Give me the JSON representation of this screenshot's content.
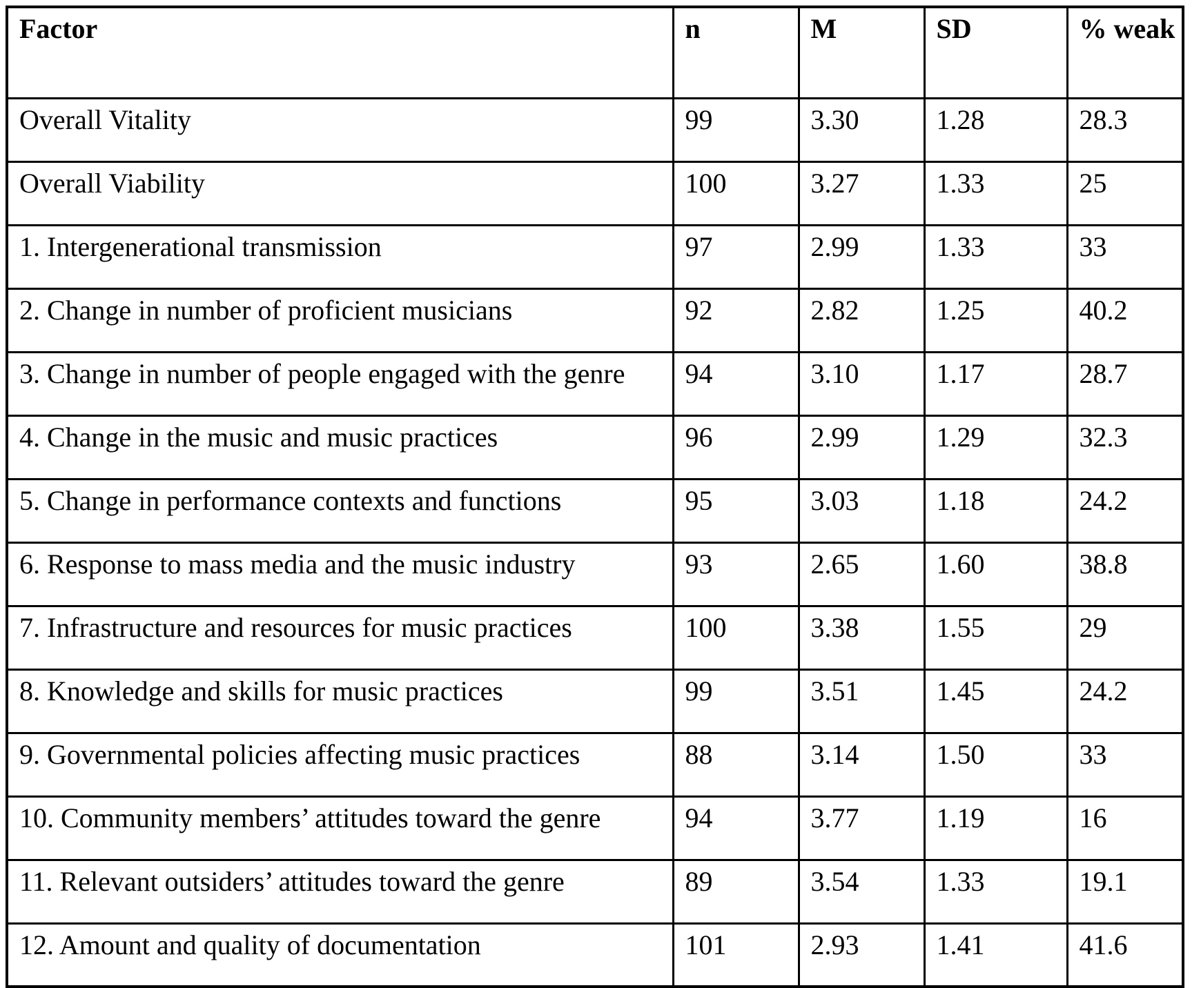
{
  "table": {
    "columns": [
      {
        "key": "factor",
        "label": "Factor"
      },
      {
        "key": "n",
        "label": "n"
      },
      {
        "key": "M",
        "label": "M"
      },
      {
        "key": "SD",
        "label": "SD"
      },
      {
        "key": "pct_weak",
        "label": "% weak"
      }
    ],
    "rows": [
      {
        "factor": "Overall Vitality",
        "n": "99",
        "M": "3.30",
        "SD": "1.28",
        "pct_weak": "28.3"
      },
      {
        "factor": "Overall Viability",
        "n": "100",
        "M": "3.27",
        "SD": "1.33",
        "pct_weak": "25"
      },
      {
        "factor": "1. Intergenerational transmission",
        "n": "97",
        "M": "2.99",
        "SD": "1.33",
        "pct_weak": "33"
      },
      {
        "factor": "2. Change in number of proficient musicians",
        "n": "92",
        "M": "2.82",
        "SD": "1.25",
        "pct_weak": "40.2"
      },
      {
        "factor": "3. Change in number of people engaged with the genre",
        "n": "94",
        "M": "3.10",
        "SD": "1.17",
        "pct_weak": "28.7"
      },
      {
        "factor": "4. Change in the music and music practices",
        "n": "96",
        "M": "2.99",
        "SD": "1.29",
        "pct_weak": "32.3"
      },
      {
        "factor": "5. Change in performance contexts and functions",
        "n": "95",
        "M": "3.03",
        "SD": "1.18",
        "pct_weak": "24.2"
      },
      {
        "factor": "6. Response to mass media and the music industry",
        "n": "93",
        "M": "2.65",
        "SD": "1.60",
        "pct_weak": "38.8"
      },
      {
        "factor": "7. Infrastructure and resources for music practices",
        "n": "100",
        "M": "3.38",
        "SD": "1.55",
        "pct_weak": "29"
      },
      {
        "factor": "8. Knowledge and skills for music practices",
        "n": "99",
        "M": "3.51",
        "SD": "1.45",
        "pct_weak": "24.2"
      },
      {
        "factor": "9. Governmental policies affecting music practices",
        "n": "88",
        "M": "3.14",
        "SD": "1.50",
        "pct_weak": "33"
      },
      {
        "factor": "10. Community members’ attitudes toward the genre",
        "n": "94",
        "M": "3.77",
        "SD": "1.19",
        "pct_weak": "16"
      },
      {
        "factor": "11. Relevant outsiders’ attitudes toward the genre",
        "n": "89",
        "M": "3.54",
        "SD": "1.33",
        "pct_weak": "19.1"
      },
      {
        "factor": "12. Amount and quality of documentation",
        "n": "101",
        "M": "2.93",
        "SD": "1.41",
        "pct_weak": "41.6"
      }
    ]
  }
}
